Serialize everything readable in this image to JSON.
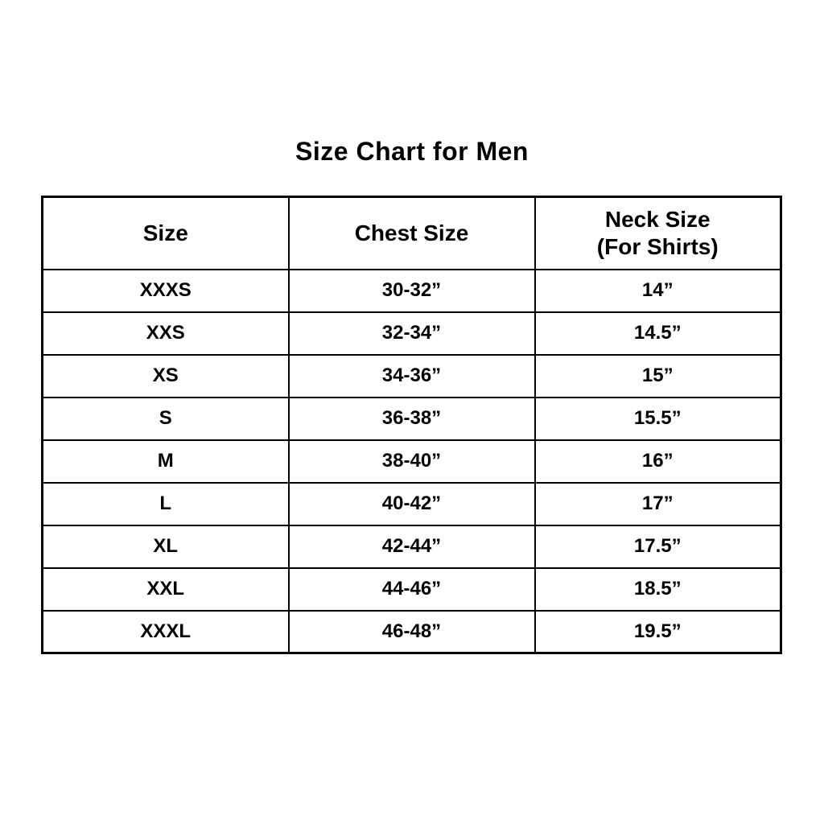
{
  "title": "Size Chart for Men",
  "colors": {
    "background": "#ffffff",
    "text": "#000000",
    "border": "#000000"
  },
  "table": {
    "headers": {
      "size": "Size",
      "chest": "Chest Size",
      "neck_line1": "Neck Size",
      "neck_line2": "(For Shirts)"
    },
    "rows": [
      {
        "size": "XXXS",
        "chest": "30-32”",
        "neck": "14”"
      },
      {
        "size": "XXS",
        "chest": "32-34”",
        "neck": "14.5”"
      },
      {
        "size": "XS",
        "chest": "34-36”",
        "neck": "15”"
      },
      {
        "size": "S",
        "chest": "36-38”",
        "neck": "15.5”"
      },
      {
        "size": "M",
        "chest": "38-40”",
        "neck": "16”"
      },
      {
        "size": "L",
        "chest": "40-42”",
        "neck": "17”"
      },
      {
        "size": "XL",
        "chest": "42-44”",
        "neck": "17.5”"
      },
      {
        "size": "XXL",
        "chest": "44-46”",
        "neck": "18.5”"
      },
      {
        "size": "XXXL",
        "chest": "46-48”",
        "neck": "19.5”"
      }
    ]
  },
  "chart_data": {
    "type": "table",
    "title": "Size Chart for Men",
    "columns": [
      "Size",
      "Chest Size",
      "Neck Size (For Shirts)"
    ],
    "rows": [
      [
        "XXXS",
        "30-32”",
        "14”"
      ],
      [
        "XXS",
        "32-34”",
        "14.5”"
      ],
      [
        "XS",
        "34-36”",
        "15”"
      ],
      [
        "S",
        "36-38”",
        "15.5”"
      ],
      [
        "M",
        "38-40”",
        "16”"
      ],
      [
        "L",
        "40-42”",
        "17”"
      ],
      [
        "XL",
        "42-44”",
        "17.5”"
      ],
      [
        "XXL",
        "44-46”",
        "18.5”"
      ],
      [
        "XXXL",
        "46-48”",
        "19.5”"
      ]
    ]
  }
}
